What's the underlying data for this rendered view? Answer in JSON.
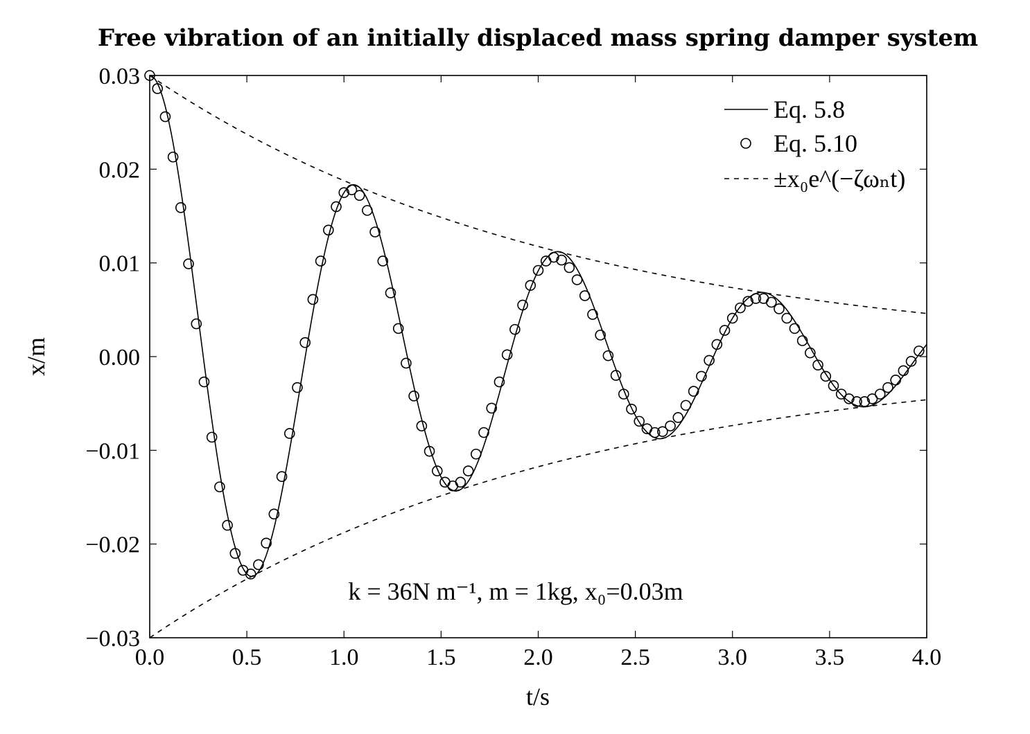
{
  "chart_data": {
    "type": "line",
    "title": "Free vibration of an initially displaced mass spring damper system",
    "xlabel": "t/s",
    "ylabel": "x/m",
    "xlim": [
      0,
      4
    ],
    "ylim": [
      -0.03,
      0.03
    ],
    "xticks": [
      "0.0",
      "0.5",
      "1.0",
      "1.5",
      "2.0",
      "2.5",
      "3.0",
      "3.5",
      "4.0"
    ],
    "yticks": [
      "0.03",
      "0.02",
      "0.01",
      "0.00",
      "−0.01",
      "−0.02",
      "−0.03"
    ],
    "grid": false,
    "legend_position": "top-right",
    "legend": [
      {
        "label": "Eq. 5.8",
        "style": "solid"
      },
      {
        "label": "Eq. 5.10",
        "style": "circle-marker"
      },
      {
        "label": "±x₀e^(−ζωₙt)",
        "style": "dashed"
      }
    ],
    "annotation": "k = 36N m⁻¹, m = 1kg, x₀=0.03m",
    "parameters": {
      "k": 36,
      "m": 1,
      "x0": 0.03
    },
    "series": [
      {
        "name": "Eq. 5.8",
        "style": "solid",
        "x": [
          0.0,
          0.25,
          0.5,
          0.75,
          1.04,
          1.3,
          1.56,
          1.82,
          2.09,
          2.35,
          2.61,
          2.87,
          3.13,
          3.39,
          3.65,
          3.91,
          4.0
        ],
        "y": [
          0.03,
          0.002,
          -0.0232,
          -0.0045,
          0.0178,
          0.0025,
          -0.0138,
          -0.0024,
          0.0106,
          0.0015,
          -0.0081,
          -0.0012,
          0.0062,
          0.0009,
          -0.0048,
          -0.0007,
          0.0013
        ]
      },
      {
        "name": "Eq. 5.10",
        "style": "circle-marker",
        "x": [
          0.0,
          0.04,
          0.08,
          0.12,
          0.16,
          0.2,
          0.24,
          0.28,
          0.32,
          0.36,
          0.4,
          0.44,
          0.48,
          0.52,
          0.56,
          0.6,
          0.64,
          0.68,
          0.72,
          0.76,
          0.8,
          0.84,
          0.88,
          0.92,
          0.96,
          1.0,
          1.04,
          1.08,
          1.12,
          1.16,
          1.2,
          1.24,
          1.28,
          1.32,
          1.36,
          1.4,
          1.44,
          1.48,
          1.52,
          1.56,
          1.6,
          1.64,
          1.68,
          1.72,
          1.76,
          1.8,
          1.84,
          1.88,
          1.92,
          1.96,
          2.0,
          2.04,
          2.08,
          2.12,
          2.16,
          2.2,
          2.24,
          2.28,
          2.32,
          2.36,
          2.4,
          2.44,
          2.48,
          2.52,
          2.56,
          2.6,
          2.64,
          2.68,
          2.72,
          2.76,
          2.8,
          2.84,
          2.88,
          2.92,
          2.96,
          3.0,
          3.04,
          3.08,
          3.12,
          3.16,
          3.2,
          3.24,
          3.28,
          3.32,
          3.36,
          3.4,
          3.44,
          3.48,
          3.52,
          3.56,
          3.6,
          3.64,
          3.68,
          3.72,
          3.76,
          3.8,
          3.84,
          3.88,
          3.92,
          3.96
        ],
        "y": [
          0.03,
          0.0286,
          0.0256,
          0.0213,
          0.0159,
          0.0099,
          0.0035,
          -0.0027,
          -0.0086,
          -0.0139,
          -0.018,
          -0.021,
          -0.0228,
          -0.0232,
          -0.0222,
          -0.0199,
          -0.0168,
          -0.0128,
          -0.0082,
          -0.0033,
          0.0015,
          0.0061,
          0.0102,
          0.0135,
          0.016,
          0.0175,
          0.0178,
          0.0172,
          0.0156,
          0.0133,
          0.0102,
          0.0068,
          0.003,
          -0.0007,
          -0.0042,
          -0.0074,
          -0.0101,
          -0.0122,
          -0.0134,
          -0.0138,
          -0.0134,
          -0.0122,
          -0.0104,
          -0.0081,
          -0.0055,
          -0.0027,
          0.0002,
          0.0029,
          0.0055,
          0.0076,
          0.0092,
          0.0102,
          0.0106,
          0.0103,
          0.0095,
          0.0082,
          0.0065,
          0.0045,
          0.0023,
          0.0001,
          -0.002,
          -0.004,
          -0.0056,
          -0.0069,
          -0.0077,
          -0.0081,
          -0.008,
          -0.0074,
          -0.0065,
          -0.0052,
          -0.0037,
          -0.0021,
          -0.0004,
          0.0013,
          0.0028,
          0.0041,
          0.0052,
          0.0059,
          0.0062,
          0.0062,
          0.0058,
          0.0051,
          0.0041,
          0.003,
          0.0017,
          0.0004,
          -0.0009,
          -0.0021,
          -0.0031,
          -0.004,
          -0.0045,
          -0.0048,
          -0.0048,
          -0.0045,
          -0.004,
          -0.0033,
          -0.0025,
          -0.0015,
          -0.0005,
          0.0006
        ]
      },
      {
        "name": "+x0·exp(−ζωn·t)",
        "style": "dashed",
        "x": [
          0.0,
          0.5,
          1.0,
          1.5,
          2.0,
          2.5,
          3.0,
          3.5,
          4.0
        ],
        "y": [
          0.03,
          0.0234,
          0.0182,
          0.0142,
          0.0111,
          0.0086,
          0.0067,
          0.0052,
          0.0041
        ]
      },
      {
        "name": "−x0·exp(−ζωn·t)",
        "style": "dashed",
        "x": [
          0.0,
          0.5,
          1.0,
          1.5,
          2.0,
          2.5,
          3.0,
          3.5,
          4.0
        ],
        "y": [
          -0.03,
          -0.0234,
          -0.0182,
          -0.0142,
          -0.0111,
          -0.0086,
          -0.0067,
          -0.0052,
          -0.0041
        ]
      }
    ]
  }
}
